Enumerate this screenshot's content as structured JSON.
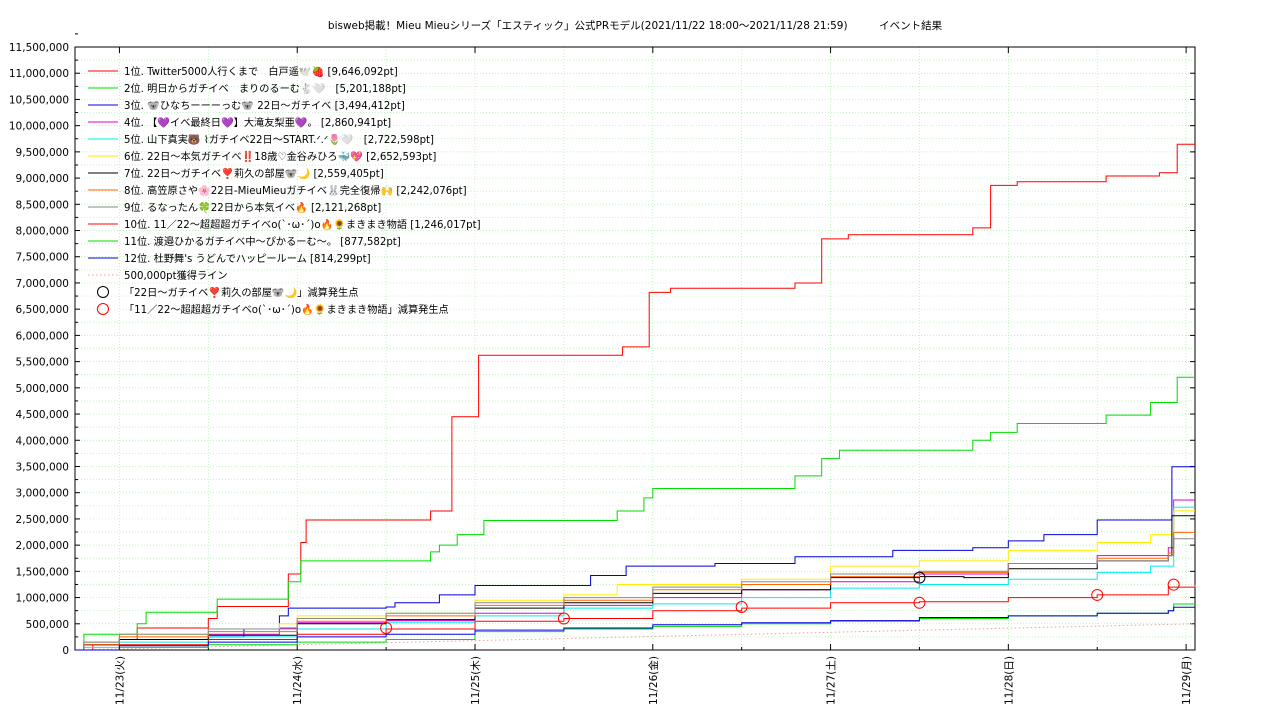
{
  "chart_data": {
    "type": "line",
    "title": "bisweb掲載！Mieu Mieuシリーズ「エスティック」公式PRモデル(2021/11/22 18:00〜2021/11/28 21:59)　　　イベント結果",
    "xlabel": "",
    "ylabel": "",
    "x_ticks": [
      "11/23(火)",
      "11/24(水)",
      "11/25(木)",
      "11/26(金)",
      "11/27(土)",
      "11/28(日)",
      "11/29(月)"
    ],
    "xlim_days": [
      -0.25,
      6.05
    ],
    "y_ticks": [
      "0",
      "500,000",
      "1,000,000",
      "1,500,000",
      "2,000,000",
      "2,500,000",
      "3,000,000",
      "3,500,000",
      "4,000,000",
      "4,500,000",
      "5,000,000",
      "5,500,000",
      "6,000,000",
      "6,500,000",
      "7,000,000",
      "7,500,000",
      "8,000,000",
      "8,500,000",
      "9,000,000",
      "9,500,000",
      "10,000,000",
      "10,500,000",
      "11,000,000",
      "11,500,000"
    ],
    "ylim": [
      0,
      11500000
    ],
    "grid": true,
    "legend_position": "top-left",
    "series": [
      {
        "name": "1位. Twitter5000人行くまで　白戸遥🕊️🍓 [9,646,092pt]",
        "color": "#ff0000",
        "points": [
          [
            -0.25,
            0
          ],
          [
            -0.15,
            100000
          ],
          [
            0,
            200000
          ],
          [
            0.1,
            420000
          ],
          [
            0.5,
            600000
          ],
          [
            0.55,
            830000
          ],
          [
            0.9,
            830000
          ],
          [
            0.95,
            1450000
          ],
          [
            1.0,
            1450000
          ],
          [
            1.02,
            2050000
          ],
          [
            1.05,
            2480000
          ],
          [
            1.7,
            2480000
          ],
          [
            1.75,
            2650000
          ],
          [
            1.85,
            2650000
          ],
          [
            1.87,
            4450000
          ],
          [
            2.0,
            4450000
          ],
          [
            2.02,
            5620000
          ],
          [
            2.8,
            5620000
          ],
          [
            2.83,
            5780000
          ],
          [
            2.95,
            5780000
          ],
          [
            2.98,
            6820000
          ],
          [
            3.05,
            6820000
          ],
          [
            3.1,
            6900000
          ],
          [
            3.75,
            6900000
          ],
          [
            3.8,
            7000000
          ],
          [
            3.92,
            7000000
          ],
          [
            3.95,
            7840000
          ],
          [
            4.05,
            7840000
          ],
          [
            4.1,
            7920000
          ],
          [
            4.75,
            7920000
          ],
          [
            4.8,
            8050000
          ],
          [
            4.88,
            8050000
          ],
          [
            4.9,
            8860000
          ],
          [
            5.0,
            8860000
          ],
          [
            5.05,
            8930000
          ],
          [
            5.5,
            8930000
          ],
          [
            5.55,
            9040000
          ],
          [
            5.8,
            9040000
          ],
          [
            5.85,
            9100000
          ],
          [
            5.92,
            9100000
          ],
          [
            5.95,
            9646092
          ],
          [
            6.05,
            9646092
          ]
        ]
      },
      {
        "name": "2位. 明日からガチイベ　まりのるーむ🐇🤍　[5,201,188pt]",
        "color": "#00dd00",
        "points": [
          [
            -0.25,
            0
          ],
          [
            -0.2,
            300000
          ],
          [
            0,
            300000
          ],
          [
            0.1,
            500000
          ],
          [
            0.15,
            720000
          ],
          [
            0.5,
            720000
          ],
          [
            0.55,
            970000
          ],
          [
            0.9,
            970000
          ],
          [
            0.95,
            1300000
          ],
          [
            1.0,
            1300000
          ],
          [
            1.02,
            1700000
          ],
          [
            1.7,
            1700000
          ],
          [
            1.75,
            1870000
          ],
          [
            1.8,
            2000000
          ],
          [
            1.9,
            2200000
          ],
          [
            2.0,
            2200000
          ],
          [
            2.05,
            2470000
          ],
          [
            2.75,
            2470000
          ],
          [
            2.8,
            2650000
          ],
          [
            2.9,
            2650000
          ],
          [
            2.95,
            2900000
          ],
          [
            3.0,
            3080000
          ],
          [
            3.75,
            3080000
          ],
          [
            3.8,
            3320000
          ],
          [
            3.9,
            3320000
          ],
          [
            3.95,
            3650000
          ],
          [
            4.0,
            3650000
          ],
          [
            4.05,
            3810000
          ],
          [
            4.75,
            3810000
          ],
          [
            4.8,
            4000000
          ],
          [
            4.9,
            4150000
          ],
          [
            5.0,
            4150000
          ],
          [
            5.05,
            4320000
          ],
          [
            5.5,
            4320000
          ],
          [
            5.55,
            4480000
          ],
          [
            5.75,
            4480000
          ],
          [
            5.8,
            4720000
          ],
          [
            5.9,
            4720000
          ],
          [
            5.95,
            5201188
          ],
          [
            6.05,
            5201188
          ]
        ]
      },
      {
        "name": "3位. 🐨ひなちーーーっむ🐨 22日〜ガチイベ [3,494,412pt]",
        "color": "#0000dd",
        "points": [
          [
            -0.25,
            0
          ],
          [
            -0.2,
            100000
          ],
          [
            0,
            200000
          ],
          [
            0.5,
            250000
          ],
          [
            0.7,
            400000
          ],
          [
            0.9,
            650000
          ],
          [
            0.95,
            800000
          ],
          [
            1.5,
            820000
          ],
          [
            1.55,
            900000
          ],
          [
            1.8,
            1050000
          ],
          [
            2.0,
            1230000
          ],
          [
            2.6,
            1230000
          ],
          [
            2.65,
            1420000
          ],
          [
            2.8,
            1420000
          ],
          [
            2.85,
            1600000
          ],
          [
            3.3,
            1600000
          ],
          [
            3.35,
            1650000
          ],
          [
            3.75,
            1650000
          ],
          [
            3.8,
            1780000
          ],
          [
            4.3,
            1780000
          ],
          [
            4.35,
            1900000
          ],
          [
            4.8,
            1950000
          ],
          [
            5.0,
            2080000
          ],
          [
            5.2,
            2200000
          ],
          [
            5.5,
            2480000
          ],
          [
            5.9,
            2480000
          ],
          [
            5.92,
            3494412
          ],
          [
            6.05,
            3494412
          ]
        ]
      },
      {
        "name": "4位. 【💜イベ最終日💜】大滝友梨亜💜。 [2,860,941pt]",
        "color": "#dd00dd",
        "points": [
          [
            -0.25,
            0
          ],
          [
            -0.2,
            150000
          ],
          [
            0,
            200000
          ],
          [
            0.5,
            300000
          ],
          [
            0.9,
            420000
          ],
          [
            1.0,
            520000
          ],
          [
            1.5,
            560000
          ],
          [
            2.0,
            700000
          ],
          [
            2.5,
            850000
          ],
          [
            3.0,
            1000000
          ],
          [
            3.5,
            1150000
          ],
          [
            4.0,
            1300000
          ],
          [
            4.5,
            1450000
          ],
          [
            5.0,
            1650000
          ],
          [
            5.5,
            1800000
          ],
          [
            5.9,
            1950000
          ],
          [
            5.93,
            2860941
          ],
          [
            6.05,
            2860941
          ]
        ]
      },
      {
        "name": "5位. 山下真実🐻 ⌇ガチイベ22日〜START.ᐟ.ᐟ🌷🤍　[2,722,598pt]",
        "color": "#00eeee",
        "points": [
          [
            -0.25,
            0
          ],
          [
            -0.2,
            50000
          ],
          [
            0,
            150000
          ],
          [
            0.5,
            250000
          ],
          [
            1.0,
            400000
          ],
          [
            1.5,
            530000
          ],
          [
            2.0,
            650000
          ],
          [
            2.5,
            800000
          ],
          [
            3.0,
            880000
          ],
          [
            3.5,
            1000000
          ],
          [
            4.0,
            1180000
          ],
          [
            4.5,
            1250000
          ],
          [
            5.0,
            1350000
          ],
          [
            5.5,
            1480000
          ],
          [
            5.8,
            1600000
          ],
          [
            5.9,
            1600000
          ],
          [
            5.93,
            2722598
          ],
          [
            6.05,
            2722598
          ]
        ]
      },
      {
        "name": "6位. 22日〜本気ガチイベ‼️18歳♡金谷みひろ🐳💖 [2,652,593pt]",
        "color": "#ffee00",
        "points": [
          [
            -0.25,
            0
          ],
          [
            -0.2,
            150000
          ],
          [
            0,
            300000
          ],
          [
            0.5,
            400000
          ],
          [
            0.9,
            500000
          ],
          [
            1.0,
            650000
          ],
          [
            1.5,
            700000
          ],
          [
            2.0,
            950000
          ],
          [
            2.5,
            1050000
          ],
          [
            2.8,
            1250000
          ],
          [
            3.0,
            1250000
          ],
          [
            3.5,
            1350000
          ],
          [
            4.0,
            1600000
          ],
          [
            4.5,
            1700000
          ],
          [
            5.0,
            1900000
          ],
          [
            5.5,
            2050000
          ],
          [
            5.8,
            2200000
          ],
          [
            5.9,
            2200000
          ],
          [
            5.93,
            2652593
          ],
          [
            6.05,
            2652593
          ]
        ]
      },
      {
        "name": "7位. 22日〜ガチイベ❣️莉久の部屋🐨🌙 [2,559,405pt]",
        "color": "#000000",
        "points": [
          [
            -0.25,
            0
          ],
          [
            -0.2,
            100000
          ],
          [
            0,
            200000
          ],
          [
            0.5,
            280000
          ],
          [
            1.0,
            500000
          ],
          [
            1.5,
            580000
          ],
          [
            2.0,
            800000
          ],
          [
            2.5,
            900000
          ],
          [
            2.9,
            900000
          ],
          [
            3.0,
            1080000
          ],
          [
            3.5,
            1150000
          ],
          [
            4.0,
            1380000
          ],
          [
            4.5,
            1400000
          ],
          [
            4.75,
            1380000
          ],
          [
            5.0,
            1550000
          ],
          [
            5.5,
            1700000
          ],
          [
            5.9,
            1800000
          ],
          [
            5.92,
            2559405
          ],
          [
            6.05,
            2559405
          ]
        ]
      },
      {
        "name": "8位. 高笠原さや🌸22日-MieuMieuガチイベ🐰完全復帰🙌 [2,242,076pt]",
        "color": "#ff6600",
        "points": [
          [
            -0.25,
            0
          ],
          [
            -0.2,
            100000
          ],
          [
            0,
            250000
          ],
          [
            0.5,
            350000
          ],
          [
            1.0,
            550000
          ],
          [
            1.5,
            650000
          ],
          [
            2.0,
            850000
          ],
          [
            2.5,
            950000
          ],
          [
            3.0,
            1150000
          ],
          [
            3.5,
            1250000
          ],
          [
            4.0,
            1400000
          ],
          [
            4.5,
            1480000
          ],
          [
            5.0,
            1650000
          ],
          [
            5.5,
            1750000
          ],
          [
            5.9,
            1850000
          ],
          [
            5.93,
            2242076
          ],
          [
            6.05,
            2242076
          ]
        ]
      },
      {
        "name": "9位. るなったん🍀22日から本気イベ🔥 [2,121,268pt]",
        "color": "#888888",
        "points": [
          [
            -0.25,
            0
          ],
          [
            -0.2,
            150000
          ],
          [
            0,
            300000
          ],
          [
            0.5,
            400000
          ],
          [
            1.0,
            600000
          ],
          [
            1.5,
            700000
          ],
          [
            2.0,
            900000
          ],
          [
            2.5,
            1000000
          ],
          [
            3.0,
            1200000
          ],
          [
            3.5,
            1300000
          ],
          [
            4.0,
            1450000
          ],
          [
            4.5,
            1500000
          ],
          [
            5.0,
            1650000
          ],
          [
            5.5,
            1700000
          ],
          [
            5.9,
            1800000
          ],
          [
            5.93,
            2121268
          ],
          [
            6.05,
            2121268
          ]
        ]
      },
      {
        "name": "10位. 11／22〜超超超ガチイベo(`･ω･´)o🔥🌻まきまき物語 [1,246,017pt]",
        "color": "#ff0000",
        "points": [
          [
            -0.25,
            0
          ],
          [
            0,
            100000
          ],
          [
            0.5,
            200000
          ],
          [
            1.0,
            300000
          ],
          [
            1.5,
            400000
          ],
          [
            2.0,
            550000
          ],
          [
            2.5,
            600000
          ],
          [
            3.0,
            750000
          ],
          [
            3.5,
            800000
          ],
          [
            4.0,
            900000
          ],
          [
            4.5,
            920000
          ],
          [
            5.0,
            1000000
          ],
          [
            5.5,
            1050000
          ],
          [
            5.9,
            1200000
          ],
          [
            6.05,
            1246017
          ]
        ]
      },
      {
        "name": "11位. 渡邉ひかるガチイベ中〜ぴかるーむ〜。 [877,582pt]",
        "color": "#00dd00",
        "points": [
          [
            -0.25,
            0
          ],
          [
            0,
            50000
          ],
          [
            0.5,
            100000
          ],
          [
            1.0,
            150000
          ],
          [
            1.5,
            200000
          ],
          [
            2.0,
            350000
          ],
          [
            2.5,
            400000
          ],
          [
            3.0,
            450000
          ],
          [
            3.5,
            500000
          ],
          [
            4.0,
            550000
          ],
          [
            4.5,
            600000
          ],
          [
            5.0,
            650000
          ],
          [
            5.5,
            700000
          ],
          [
            5.9,
            750000
          ],
          [
            5.93,
            877582
          ],
          [
            6.05,
            877582
          ]
        ]
      },
      {
        "name": "12位. 杜野舞's うどんでハッピールーム [814,299pt]",
        "color": "#0000dd",
        "points": [
          [
            -0.25,
            0
          ],
          [
            0,
            80000
          ],
          [
            0.5,
            150000
          ],
          [
            1.0,
            250000
          ],
          [
            1.5,
            300000
          ],
          [
            2.0,
            380000
          ],
          [
            2.5,
            420000
          ],
          [
            3.0,
            480000
          ],
          [
            3.5,
            520000
          ],
          [
            4.0,
            560000
          ],
          [
            4.5,
            620000
          ],
          [
            5.0,
            650000
          ],
          [
            5.5,
            700000
          ],
          [
            5.9,
            750000
          ],
          [
            5.93,
            814299
          ],
          [
            6.05,
            814299
          ]
        ]
      }
    ],
    "reference_line": {
      "name": "500,000pt獲得ライン",
      "color": "#ff9999",
      "points": [
        [
          -0.25,
          0
        ],
        [
          6.05,
          500000
        ]
      ]
    },
    "markers": [
      {
        "name": "「22日〜ガチイベ❣️莉久の部屋🐨🌙」減算発生点",
        "color": "#000000",
        "points": [
          [
            4.5,
            1380000
          ]
        ]
      },
      {
        "name": "「11／22〜超超超ガチイベo(`･ω･´)o🔥🌻まきまき物語」減算発生点",
        "color": "#ff0000",
        "points": [
          [
            1.5,
            420000
          ],
          [
            2.5,
            600000
          ],
          [
            3.5,
            820000
          ],
          [
            4.5,
            900000
          ],
          [
            5.5,
            1050000
          ],
          [
            5.93,
            1246017
          ]
        ]
      }
    ]
  }
}
